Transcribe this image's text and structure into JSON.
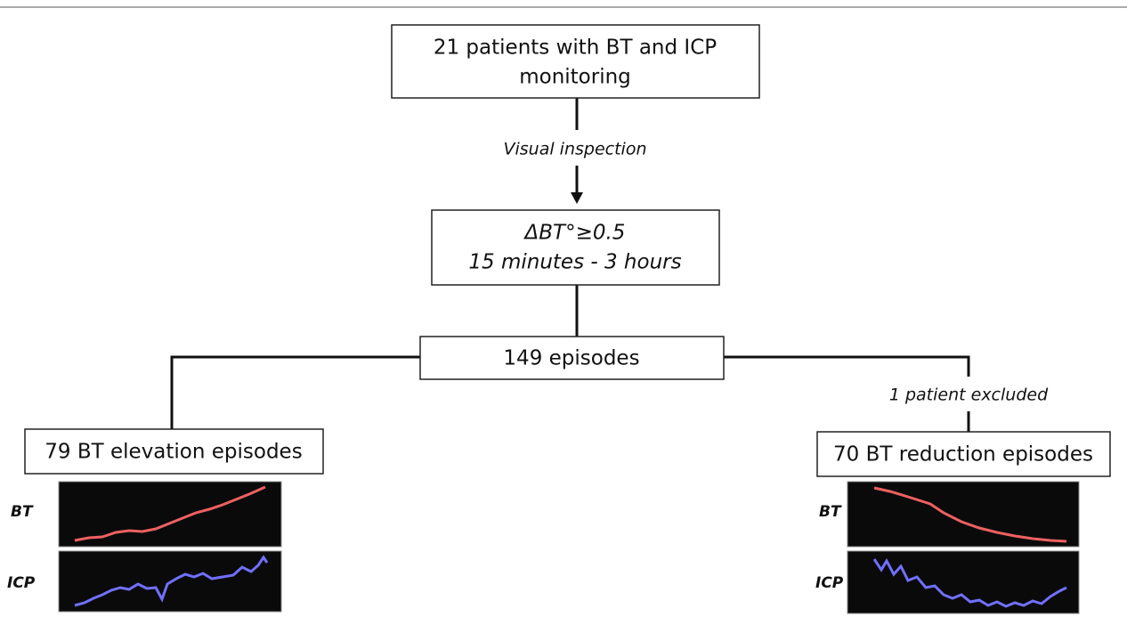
{
  "nodes": [
    {
      "lines": [
        "21 patients with BT and ICP",
        "monitoring"
      ]
    },
    {
      "lines": [
        "ΔBT°≥0.5",
        "15 minutes - 3 hours"
      ]
    },
    {
      "lines": [
        "149 episodes"
      ]
    },
    {
      "lines": [
        "79 BT elevation episodes"
      ]
    },
    {
      "lines": [
        "70 BT reduction episodes"
      ]
    }
  ],
  "edges": [
    {
      "label": "Visual inspection"
    },
    {
      "label": "1 patient excluded"
    }
  ],
  "panels": [
    {
      "labels": [
        "BT",
        "ICP"
      ]
    },
    {
      "labels": [
        "BT",
        "ICP"
      ]
    }
  ]
}
